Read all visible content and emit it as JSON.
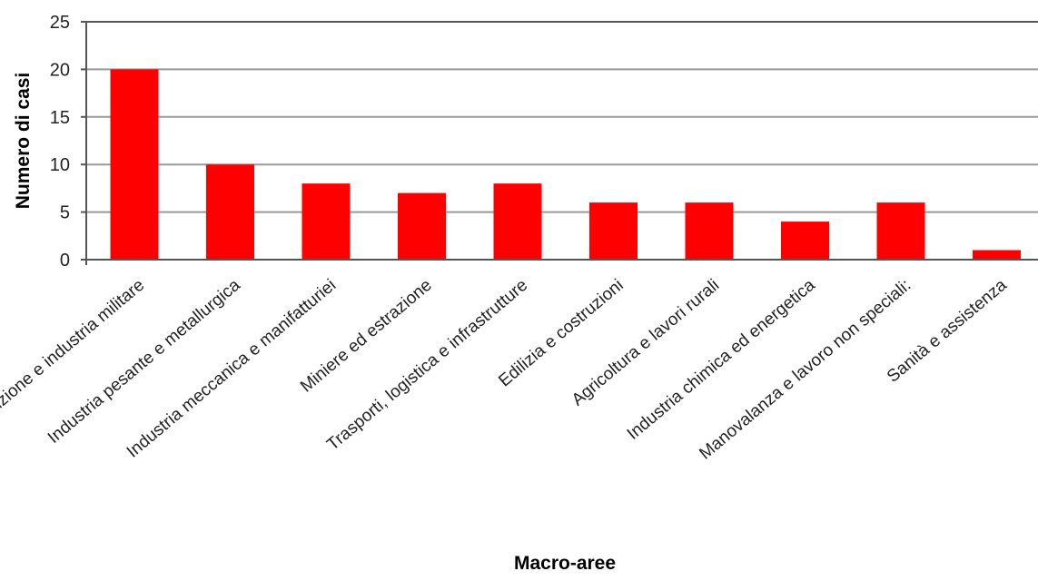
{
  "chart_data": {
    "type": "bar",
    "categories": [
      "Produzione e industria militare",
      "Industria pesante e metallurgica",
      "Industria meccanica e manifatturiei",
      "Miniere ed estrazione",
      "Trasporti, logistica e infrastrutture",
      "Edilizia e costruzioni",
      "Agricoltura e lavori rurali",
      "Industria chimica ed energetica",
      "Manovalanza e lavoro non speciali:",
      "Sanità e assistenza"
    ],
    "values": [
      20,
      10,
      8,
      7,
      8,
      6,
      6,
      4,
      6,
      1
    ],
    "xlabel": "Macro-aree",
    "ylabel": "Numero di casi",
    "ylim": [
      0,
      25
    ],
    "yticks": [
      0,
      5,
      10,
      15,
      20,
      25
    ],
    "grid": true,
    "legend": "none",
    "colors": {
      "bar": "#ff0000",
      "grid": "#999999",
      "frame": "#555555"
    }
  }
}
